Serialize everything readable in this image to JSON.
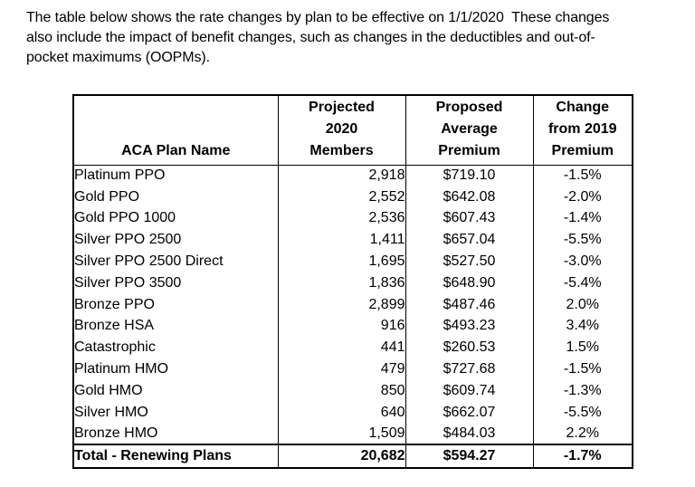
{
  "intro": {
    "lines": [
      "The table below shows the rate changes by plan to be effective on 1/1/2020  These changes",
      "also include the impact of benefit changes, such as changes in the deductibles and out-of-",
      "pocket maximums (OOPMs)."
    ]
  },
  "table": {
    "headers": {
      "plan": "ACA Plan Name",
      "members": [
        "Projected",
        "2020",
        "Members"
      ],
      "premium": [
        "Proposed",
        "Average",
        "Premium"
      ],
      "change": [
        "Change",
        "from 2019",
        "Premium"
      ]
    },
    "rows": [
      {
        "plan": "Platinum PPO",
        "members": "2,918",
        "premium": "$719.10",
        "change": "-1.5%"
      },
      {
        "plan": "Gold PPO",
        "members": "2,552",
        "premium": "$642.08",
        "change": "-2.0%"
      },
      {
        "plan": "Gold PPO 1000",
        "members": "2,536",
        "premium": "$607.43",
        "change": "-1.4%"
      },
      {
        "plan": "Silver PPO 2500",
        "members": "1,411",
        "premium": "$657.04",
        "change": "-5.5%"
      },
      {
        "plan": "Silver PPO 2500 Direct",
        "members": "1,695",
        "premium": "$527.50",
        "change": "-3.0%"
      },
      {
        "plan": "Silver PPO 3500",
        "members": "1,836",
        "premium": "$648.90",
        "change": "-5.4%"
      },
      {
        "plan": "Bronze PPO",
        "members": "2,899",
        "premium": "$487.46",
        "change": "2.0%"
      },
      {
        "plan": "Bronze HSA",
        "members": "916",
        "premium": "$493.23",
        "change": "3.4%"
      },
      {
        "plan": "Catastrophic",
        "members": "441",
        "premium": "$260.53",
        "change": "1.5%"
      },
      {
        "plan": "Platinum HMO",
        "members": "479",
        "premium": "$727.68",
        "change": "-1.5%"
      },
      {
        "plan": "Gold HMO",
        "members": "850",
        "premium": "$609.74",
        "change": "-1.3%"
      },
      {
        "plan": "Silver HMO",
        "members": "640",
        "premium": "$662.07",
        "change": "-5.5%"
      },
      {
        "plan": "Bronze HMO",
        "members": "1,509",
        "premium": "$484.03",
        "change": "2.2%"
      }
    ],
    "total": {
      "plan": "Total - Renewing Plans",
      "members": "20,682",
      "premium": "$594.27",
      "change": "-1.7%"
    }
  }
}
